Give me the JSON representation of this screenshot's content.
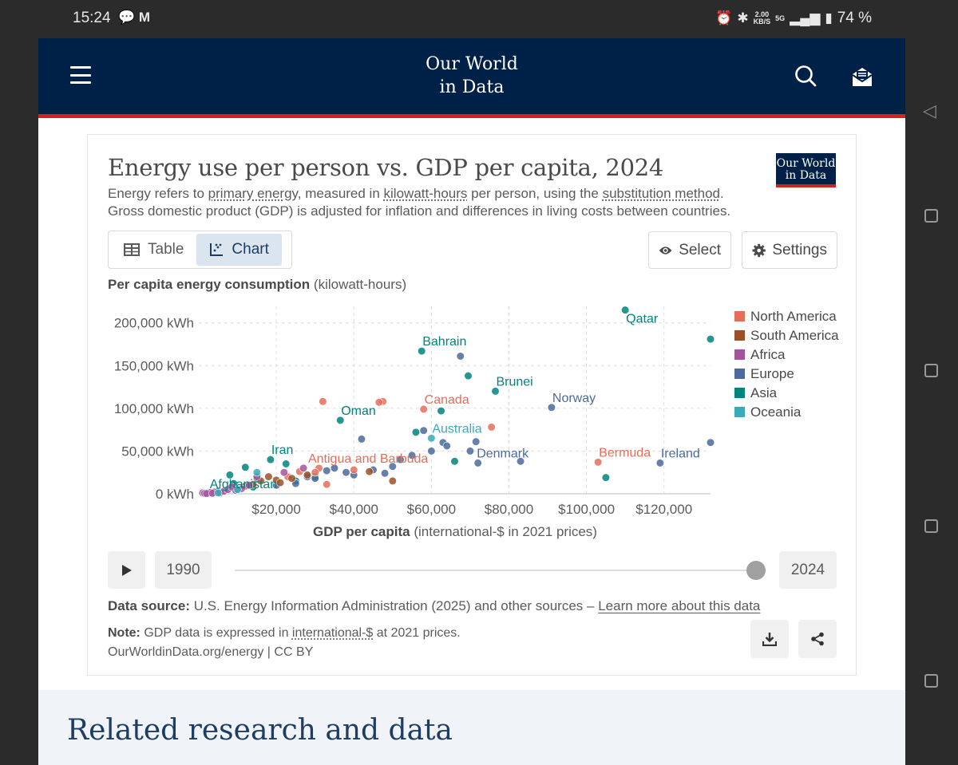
{
  "status_bar": {
    "time": "15:24",
    "net_speed_top": "2.00",
    "net_speed_bottom": "KB/S",
    "network": "5G",
    "battery": "74 %"
  },
  "header": {
    "logo_line1": "Our World",
    "logo_line2": "in Data"
  },
  "card": {
    "title": "Energy use per person vs. GDP per capita, 2024",
    "badge_line1": "Our World",
    "badge_line2": "in Data",
    "subtitle_1a": "Energy refers to ",
    "subtitle_link1": "primary energy",
    "subtitle_1b": ", measured in ",
    "subtitle_link2": "kilowatt-hours",
    "subtitle_1c": " per person, using the ",
    "subtitle_link3": "substitution method",
    "subtitle_1d": ".",
    "subtitle_2": "Gross domestic product (GDP) is adjusted for inflation and differences in living costs between countries.",
    "tab_table": "Table",
    "tab_chart": "Chart",
    "select_label": "Select",
    "settings_label": "Settings",
    "y_axis_bold": "Per capita energy consumption",
    "y_axis_unit": " (kilowatt-hours)",
    "x_axis_bold": "GDP per capita",
    "x_axis_unit": " (international-$ in 2021 prices)",
    "timeline_start": "1990",
    "timeline_end": "2024",
    "timeline_position": 1.0,
    "source_label": "Data source:",
    "source_text": " U.S. Energy Information Administration (2025) and other sources – ",
    "source_link": "Learn more about this data",
    "note_label": "Note:",
    "note_text_a": " GDP data is expressed in ",
    "note_link": "international-$",
    "note_text_b": " at 2021 prices.",
    "license": "OurWorldinData.org/energy | CC BY"
  },
  "related_title": "Related research and data",
  "chart_data": {
    "type": "scatter",
    "title": "Energy use per person vs. GDP per capita, 2024",
    "xlabel": "GDP per capita (international-$ in 2021 prices)",
    "ylabel": "Per capita energy consumption (kilowatt-hours)",
    "xlim": [
      0,
      132000
    ],
    "ylim": [
      0,
      210000
    ],
    "x_ticks": [
      20000,
      40000,
      60000,
      80000,
      100000,
      120000
    ],
    "x_tick_labels": [
      "$20,000",
      "$40,000",
      "$60,000",
      "$80,000",
      "$100,000",
      "$120,000"
    ],
    "y_ticks": [
      0,
      50000,
      100000,
      150000,
      200000
    ],
    "y_tick_labels": [
      "0 kWh",
      "50,000 kWh",
      "100,000 kWh",
      "150,000 kWh",
      "200,000 kWh"
    ],
    "legend": [
      {
        "name": "North America",
        "color": "#e56e5a"
      },
      {
        "name": "South America",
        "color": "#9a5129"
      },
      {
        "name": "Africa",
        "color": "#a2559c"
      },
      {
        "name": "Europe",
        "color": "#4c6a9c"
      },
      {
        "name": "Asia",
        "color": "#00847e"
      },
      {
        "name": "Oceania",
        "color": "#38aaba"
      }
    ],
    "series": [
      {
        "name": "Asia",
        "color": "#00847e",
        "points": [
          [
            110000,
            215000
          ],
          [
            132000,
            181000
          ],
          [
            57500,
            167000
          ],
          [
            69500,
            138000
          ],
          [
            76500,
            120000
          ],
          [
            36500,
            86000
          ],
          [
            62500,
            97000
          ],
          [
            18500,
            40000
          ],
          [
            56000,
            72000
          ],
          [
            66000,
            38000
          ],
          [
            105000,
            19000
          ],
          [
            12000,
            31000
          ],
          [
            8000,
            22000
          ],
          [
            22500,
            35000
          ],
          [
            15000,
            18000
          ],
          [
            2000,
            1000
          ],
          [
            5000,
            3000
          ],
          [
            25000,
            15000
          ],
          [
            30000,
            20000
          ],
          [
            3500,
            2000
          ],
          [
            9000,
            12000
          ],
          [
            14000,
            8000
          ]
        ]
      },
      {
        "name": "Europe",
        "color": "#4c6a9c",
        "points": [
          [
            67500,
            161000
          ],
          [
            91000,
            101000
          ],
          [
            132000,
            60000
          ],
          [
            119000,
            36000
          ],
          [
            83000,
            38000
          ],
          [
            71500,
            61000
          ],
          [
            72000,
            36000
          ],
          [
            58000,
            74000
          ],
          [
            63000,
            60000
          ],
          [
            64000,
            56000
          ],
          [
            42000,
            64000
          ],
          [
            35000,
            30000
          ],
          [
            45000,
            28000
          ],
          [
            50000,
            32000
          ],
          [
            52000,
            40000
          ],
          [
            40000,
            22000
          ],
          [
            38000,
            25000
          ],
          [
            30000,
            18000
          ],
          [
            28000,
            20000
          ],
          [
            48000,
            24000
          ],
          [
            55000,
            45000
          ],
          [
            60000,
            50000
          ],
          [
            25000,
            12000
          ],
          [
            20000,
            10000
          ],
          [
            33000,
            27000
          ],
          [
            70000,
            50000
          ]
        ]
      },
      {
        "name": "North America",
        "color": "#e56e5a",
        "points": [
          [
            32000,
            108000
          ],
          [
            47500,
            108000
          ],
          [
            46500,
            107000
          ],
          [
            58000,
            99000
          ],
          [
            75500,
            78000
          ],
          [
            103000,
            37000
          ],
          [
            31000,
            30000
          ],
          [
            30000,
            25000
          ],
          [
            26000,
            26000
          ],
          [
            23000,
            20000
          ],
          [
            33000,
            11000
          ],
          [
            40000,
            28000
          ]
        ]
      },
      {
        "name": "South America",
        "color": "#9a5129",
        "points": [
          [
            24000,
            18000
          ],
          [
            18000,
            20000
          ],
          [
            16000,
            15000
          ],
          [
            20000,
            16000
          ],
          [
            21000,
            13000
          ],
          [
            14000,
            11000
          ],
          [
            12000,
            9000
          ],
          [
            28000,
            22000
          ],
          [
            50000,
            15000
          ],
          [
            44000,
            26000
          ]
        ]
      },
      {
        "name": "Africa",
        "color": "#a2559c",
        "points": [
          [
            1000,
            1000
          ],
          [
            1500,
            500
          ],
          [
            2500,
            800
          ],
          [
            3000,
            1500
          ],
          [
            4000,
            2000
          ],
          [
            5500,
            1200
          ],
          [
            6500,
            3000
          ],
          [
            7500,
            5000
          ],
          [
            9500,
            4000
          ],
          [
            11000,
            6000
          ],
          [
            13000,
            10000
          ],
          [
            15000,
            20000
          ],
          [
            22000,
            25000
          ],
          [
            27000,
            30000
          ],
          [
            2000,
            300
          ],
          [
            3500,
            600
          ],
          [
            8500,
            8000
          ]
        ]
      },
      {
        "name": "Oceania",
        "color": "#38aaba",
        "points": [
          [
            60000,
            65000
          ],
          [
            5000,
            1000
          ],
          [
            10000,
            5000
          ],
          [
            15000,
            25000
          ]
        ]
      }
    ],
    "labels": [
      {
        "text": "Qatar",
        "x": 110000,
        "y": 215000,
        "color": "#00847e"
      },
      {
        "text": "Bahrain",
        "x": 57500,
        "y": 167000,
        "color": "#00847e"
      },
      {
        "text": "Brunei",
        "x": 76500,
        "y": 120000,
        "color": "#00847e"
      },
      {
        "text": "Norway",
        "x": 91000,
        "y": 101000,
        "color": "#4c6a9c"
      },
      {
        "text": "Canada",
        "x": 58000,
        "y": 99000,
        "color": "#e56e5a"
      },
      {
        "text": "Oman",
        "x": 36500,
        "y": 86000,
        "color": "#00847e"
      },
      {
        "text": "Australia",
        "x": 60000,
        "y": 65000,
        "color": "#38aaba"
      },
      {
        "text": "Iran",
        "x": 18500,
        "y": 40000,
        "color": "#00847e"
      },
      {
        "text": "Antigua and Barbuda",
        "x": 28000,
        "y": 30000,
        "color": "#e56e5a"
      },
      {
        "text": "Denmark",
        "x": 71500,
        "y": 36000,
        "color": "#4c6a9c"
      },
      {
        "text": "Bermuda",
        "x": 103000,
        "y": 37000,
        "color": "#e56e5a"
      },
      {
        "text": "Ireland",
        "x": 119000,
        "y": 36000,
        "color": "#4c6a9c"
      },
      {
        "text": "Afghanistan",
        "x": 2000,
        "y": 1000,
        "color": "#00847e"
      }
    ]
  }
}
